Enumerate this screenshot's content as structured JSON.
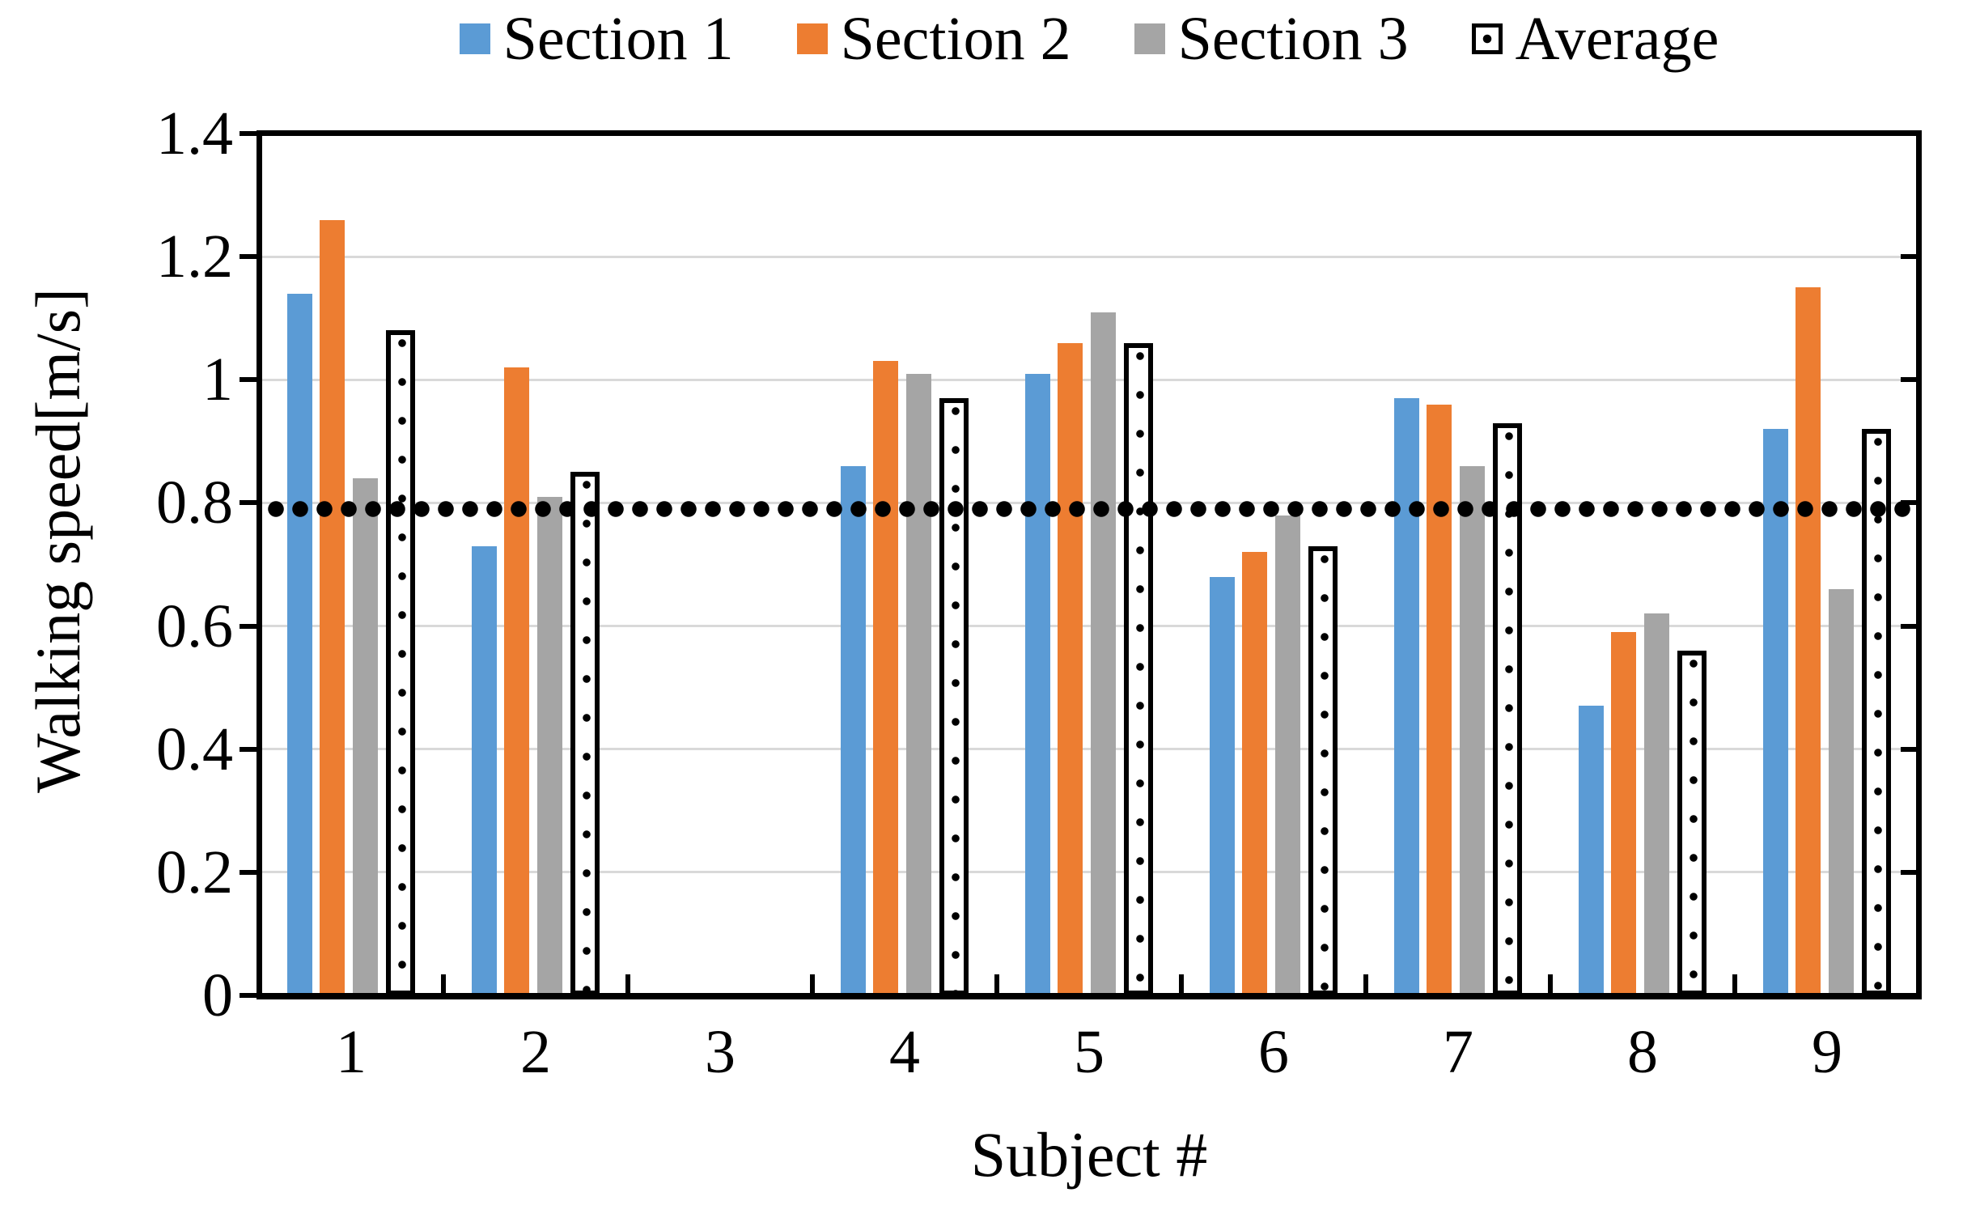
{
  "legend": {
    "items": [
      {
        "label": "Section 1",
        "color": "#5B9BD5",
        "swatch": "solid"
      },
      {
        "label": "Section 2",
        "color": "#ED7D31",
        "swatch": "solid"
      },
      {
        "label": "Section 3",
        "color": "#A5A5A5",
        "swatch": "solid"
      },
      {
        "label": "Average",
        "color": "#FFFFFF",
        "swatch": "dotted-outline"
      }
    ]
  },
  "chart_data": {
    "type": "bar",
    "title": "",
    "categories": [
      "1",
      "2",
      "3",
      "4",
      "5",
      "6",
      "7",
      "8",
      "9"
    ],
    "series": [
      {
        "name": "Section 1",
        "color": "#5B9BD5",
        "fill": "solid",
        "values": [
          1.14,
          0.73,
          null,
          0.86,
          1.01,
          0.68,
          0.97,
          0.47,
          0.92
        ]
      },
      {
        "name": "Section 2",
        "color": "#ED7D31",
        "fill": "solid",
        "values": [
          1.26,
          1.02,
          null,
          1.03,
          1.06,
          0.72,
          0.96,
          0.59,
          1.15
        ]
      },
      {
        "name": "Section 3",
        "color": "#A5A5A5",
        "fill": "solid",
        "values": [
          0.84,
          0.81,
          null,
          1.01,
          1.11,
          0.78,
          0.86,
          0.62,
          0.66
        ]
      },
      {
        "name": "Average",
        "color": "#FFFFFF",
        "fill": "sparse-black-dots-outline",
        "values": [
          1.08,
          0.85,
          null,
          0.97,
          1.06,
          0.73,
          0.93,
          0.56,
          0.92
        ]
      }
    ],
    "xlabel": "Subject #",
    "ylabel": "Walking speed[m/s]",
    "ylim": [
      0,
      1.4
    ],
    "ytick_step": 0.2,
    "yticks": [
      "0",
      "0.2",
      "0.4",
      "0.6",
      "0.8",
      "1",
      "1.2",
      "1.4"
    ],
    "grid": "horizontal",
    "gridline_color": "#D9D9D9",
    "legend_position": "top",
    "reference_line": {
      "value": 0.79,
      "style": "dotted",
      "color": "#000000"
    }
  }
}
